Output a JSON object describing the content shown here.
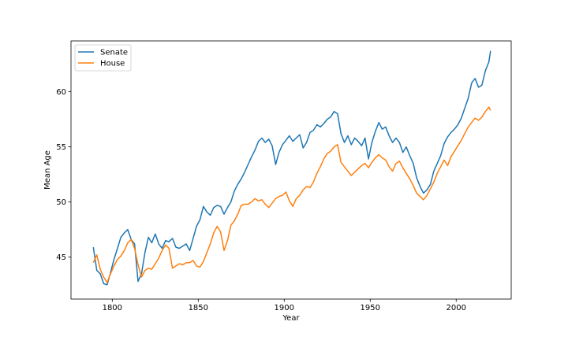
{
  "chart_data": {
    "type": "line",
    "title": "",
    "xlabel": "Year",
    "ylabel": "Mean Age",
    "xlim": [
      1776,
      2032
    ],
    "ylim": [
      41.2,
      64.6
    ],
    "xticks": [
      1800,
      1850,
      1900,
      1950,
      2000
    ],
    "yticks": [
      45,
      50,
      55,
      60
    ],
    "grid": false,
    "legend_position": "upper-left",
    "series": [
      {
        "name": "Senate",
        "color": "#1f77b4",
        "x": [
          1789,
          1791,
          1793,
          1795,
          1797,
          1799,
          1801,
          1803,
          1805,
          1807,
          1809,
          1811,
          1813,
          1815,
          1817,
          1819,
          1821,
          1823,
          1825,
          1827,
          1829,
          1831,
          1833,
          1835,
          1837,
          1839,
          1841,
          1843,
          1845,
          1847,
          1849,
          1851,
          1853,
          1855,
          1857,
          1859,
          1861,
          1863,
          1865,
          1867,
          1869,
          1871,
          1873,
          1875,
          1877,
          1879,
          1881,
          1883,
          1885,
          1887,
          1889,
          1891,
          1893,
          1895,
          1897,
          1899,
          1901,
          1903,
          1905,
          1907,
          1909,
          1911,
          1913,
          1915,
          1917,
          1919,
          1921,
          1923,
          1925,
          1927,
          1929,
          1931,
          1933,
          1935,
          1937,
          1939,
          1941,
          1943,
          1945,
          1947,
          1949,
          1951,
          1953,
          1955,
          1957,
          1959,
          1961,
          1963,
          1965,
          1967,
          1969,
          1971,
          1973,
          1975,
          1977,
          1979,
          1981,
          1983,
          1985,
          1987,
          1989,
          1991,
          1993,
          1995,
          1997,
          1999,
          2001,
          2003,
          2005,
          2007,
          2009,
          2011,
          2013,
          2015,
          2017,
          2019,
          2020
        ],
        "values": [
          45.9,
          43.8,
          43.5,
          42.6,
          42.5,
          43.6,
          44.8,
          45.8,
          46.8,
          47.2,
          47.5,
          46.6,
          46.2,
          42.8,
          43.5,
          45.4,
          46.8,
          46.3,
          47.1,
          46.2,
          45.8,
          46.5,
          46.4,
          46.7,
          45.9,
          45.8,
          46.0,
          46.2,
          45.6,
          46.7,
          47.8,
          48.4,
          49.6,
          49.1,
          48.8,
          49.5,
          49.7,
          49.6,
          48.9,
          49.5,
          50.0,
          51.0,
          51.6,
          52.1,
          52.7,
          53.4,
          54.1,
          54.7,
          55.5,
          55.8,
          55.4,
          55.7,
          55.1,
          53.4,
          54.5,
          55.2,
          55.6,
          56.0,
          55.5,
          55.8,
          56.1,
          54.9,
          55.4,
          56.3,
          56.5,
          57.0,
          56.8,
          57.1,
          57.5,
          57.7,
          58.2,
          58.0,
          56.2,
          55.4,
          56.0,
          55.2,
          55.8,
          55.5,
          55.1,
          55.8,
          53.9,
          55.4,
          56.4,
          57.2,
          56.6,
          56.8,
          56.0,
          55.4,
          55.8,
          55.4,
          54.5,
          55.0,
          54.2,
          53.5,
          52.2,
          51.4,
          50.8,
          51.1,
          51.6,
          52.8,
          53.5,
          54.2,
          55.3,
          55.9,
          56.3,
          56.6,
          57.0,
          57.6,
          58.5,
          59.4,
          60.8,
          61.2,
          60.4,
          60.6,
          61.9,
          62.7,
          63.7
        ]
      },
      {
        "name": "House",
        "color": "#ff7f0e",
        "x": [
          1789,
          1791,
          1793,
          1795,
          1797,
          1799,
          1801,
          1803,
          1805,
          1807,
          1809,
          1811,
          1813,
          1815,
          1817,
          1819,
          1821,
          1823,
          1825,
          1827,
          1829,
          1831,
          1833,
          1835,
          1837,
          1839,
          1841,
          1843,
          1845,
          1847,
          1849,
          1851,
          1853,
          1855,
          1857,
          1859,
          1861,
          1863,
          1865,
          1867,
          1869,
          1871,
          1873,
          1875,
          1877,
          1879,
          1881,
          1883,
          1885,
          1887,
          1889,
          1891,
          1893,
          1895,
          1897,
          1899,
          1901,
          1903,
          1905,
          1907,
          1909,
          1911,
          1913,
          1915,
          1917,
          1919,
          1921,
          1923,
          1925,
          1927,
          1929,
          1931,
          1933,
          1935,
          1937,
          1939,
          1941,
          1943,
          1945,
          1947,
          1949,
          1951,
          1953,
          1955,
          1957,
          1959,
          1961,
          1963,
          1965,
          1967,
          1969,
          1971,
          1973,
          1975,
          1977,
          1979,
          1981,
          1983,
          1985,
          1987,
          1989,
          1991,
          1993,
          1995,
          1997,
          1999,
          2001,
          2003,
          2005,
          2007,
          2009,
          2011,
          2013,
          2015,
          2017,
          2019,
          2020
        ],
        "values": [
          44.5,
          45.2,
          43.9,
          43.2,
          42.7,
          43.5,
          44.2,
          44.8,
          45.1,
          45.6,
          46.3,
          46.6,
          45.8,
          44.3,
          43.2,
          43.8,
          44.0,
          43.9,
          44.4,
          44.9,
          45.6,
          46.1,
          45.8,
          44.0,
          44.2,
          44.4,
          44.3,
          44.5,
          44.5,
          44.7,
          44.2,
          44.1,
          44.6,
          45.4,
          46.2,
          47.2,
          47.8,
          47.3,
          45.6,
          46.5,
          47.9,
          48.3,
          48.9,
          49.7,
          49.8,
          49.8,
          50.0,
          50.3,
          50.1,
          50.2,
          49.8,
          49.5,
          49.9,
          50.3,
          50.5,
          50.6,
          50.9,
          50.1,
          49.6,
          50.3,
          50.6,
          51.1,
          51.4,
          51.3,
          51.8,
          52.6,
          53.2,
          53.9,
          54.4,
          54.6,
          55.0,
          55.2,
          53.6,
          53.2,
          52.8,
          52.4,
          52.7,
          53.0,
          53.3,
          53.5,
          53.1,
          53.6,
          54.0,
          54.3,
          54.0,
          53.8,
          53.2,
          52.8,
          53.5,
          53.7,
          53.1,
          52.6,
          52.1,
          51.5,
          50.8,
          50.5,
          50.2,
          50.6,
          51.2,
          51.8,
          52.6,
          53.2,
          53.8,
          53.3,
          54.1,
          54.6,
          55.1,
          55.6,
          56.2,
          56.8,
          57.2,
          57.6,
          57.4,
          57.7,
          58.2,
          58.6,
          58.3
        ]
      }
    ]
  }
}
